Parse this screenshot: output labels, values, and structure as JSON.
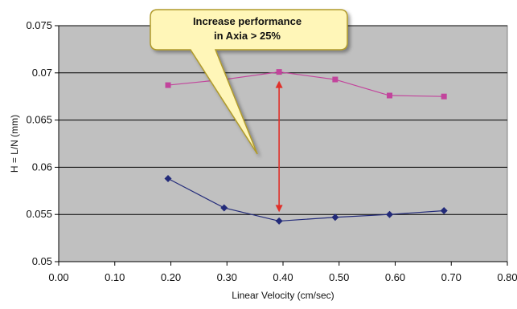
{
  "chart_data": {
    "type": "line",
    "xlabel": "Linear Velocity (cm/sec)",
    "ylabel": "H = L/N (mm)",
    "xlim": [
      0.0,
      0.8
    ],
    "ylim": [
      0.05,
      0.075
    ],
    "x_ticks": [
      "0.00",
      "0.10",
      "0.20",
      "0.30",
      "0.40",
      "0.50",
      "0.60",
      "0.70",
      "0.80"
    ],
    "y_ticks": [
      "0.05",
      "0.055",
      "0.06",
      "0.065",
      "0.07",
      "0.075"
    ],
    "grid": "horizontal",
    "plot_background": "#c0c0c0",
    "series": [
      {
        "marker": "square",
        "color": "#c2449c",
        "x": [
          0.195,
          0.295,
          0.393,
          0.493,
          0.59,
          0.687
        ],
        "y": [
          0.0687,
          0.0693,
          0.0701,
          0.0693,
          0.0676,
          0.0675
        ]
      },
      {
        "marker": "diamond",
        "color": "#232b7a",
        "x": [
          0.195,
          0.295,
          0.393,
          0.493,
          0.59,
          0.687
        ],
        "y": [
          0.0588,
          0.0557,
          0.0543,
          0.0547,
          0.055,
          0.0554
        ]
      }
    ],
    "annotation": {
      "lines": [
        "Increase performance",
        "in Axia > 25%"
      ],
      "background": "#fff6b8",
      "border": "#b09a2a",
      "arrow_color": "#e0302a",
      "arrow_x": 0.393,
      "arrow_from_y": 0.0543,
      "arrow_to_y": 0.0701
    }
  }
}
